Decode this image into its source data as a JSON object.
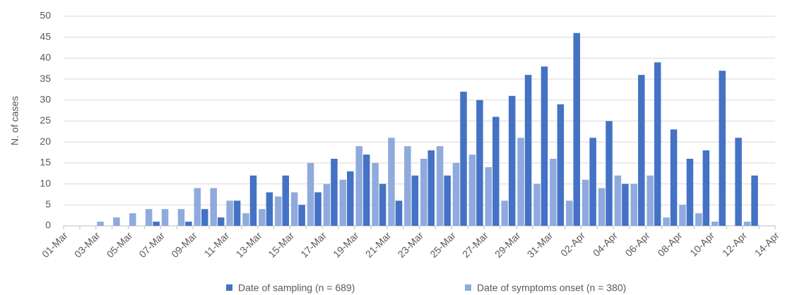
{
  "chart_data": {
    "type": "bar",
    "y_label": "N. of cases",
    "categories": [
      "01-Mar",
      null,
      "03-Mar",
      null,
      "05-Mar",
      null,
      "07-Mar",
      null,
      "09-Mar",
      null,
      "11-Mar",
      null,
      "13-Mar",
      null,
      "15-Mar",
      null,
      "17-Mar",
      null,
      "19-Mar",
      null,
      "21-Mar",
      null,
      "23-Mar",
      null,
      "25-Mar",
      null,
      "27-Mar",
      null,
      "29-Mar",
      null,
      "31-Mar",
      null,
      "02-Apr",
      null,
      "04-Apr",
      null,
      "06-Apr",
      null,
      "08-Apr",
      null,
      "10-Apr",
      null,
      "12-Apr",
      null,
      "14-Apr"
    ],
    "series": [
      {
        "name": "Date of sampling (n = 689)",
        "color": "#4472c4",
        "values": [
          0,
          0,
          0,
          0,
          0,
          1,
          0,
          1,
          4,
          2,
          6,
          12,
          8,
          12,
          5,
          8,
          16,
          13,
          17,
          10,
          6,
          12,
          18,
          12,
          32,
          30,
          26,
          31,
          36,
          38,
          29,
          46,
          21,
          25,
          10,
          36,
          39,
          23,
          16,
          18,
          37,
          21,
          12,
          0,
          0
        ]
      },
      {
        "name": "Date of symptoms onset (n = 380)",
        "color": "#8faadc",
        "values": [
          0,
          0,
          1,
          2,
          3,
          4,
          4,
          4,
          9,
          9,
          6,
          3,
          4,
          7,
          8,
          15,
          10,
          11,
          19,
          15,
          21,
          19,
          16,
          19,
          15,
          17,
          14,
          6,
          21,
          10,
          16,
          6,
          11,
          9,
          12,
          10,
          12,
          2,
          5,
          3,
          1,
          0,
          1,
          0,
          0
        ]
      }
    ],
    "ylim": [
      0,
      50
    ],
    "yticks": [
      0,
      5,
      10,
      15,
      20,
      25,
      30,
      35,
      40,
      45,
      50
    ],
    "grid": true
  }
}
